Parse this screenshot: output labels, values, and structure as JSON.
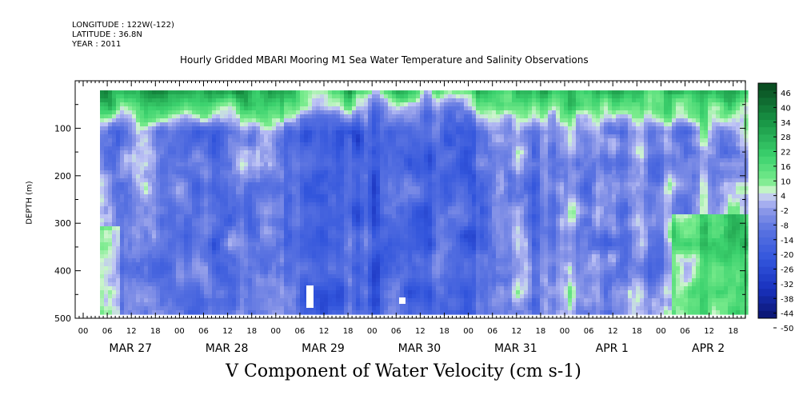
{
  "header": {
    "longitude": "LONGITUDE : 122W(-122)",
    "latitude": "LATITUDE : 36.8N",
    "year": "YEAR : 2011"
  },
  "title": "Hourly Gridded MBARI Mooring M1 Sea Water Temperature and Salinity Observations",
  "chart_data": {
    "type": "heatmap",
    "xlabel": "V Component of Water Velocity (cm s-1)",
    "ylabel": "DEPTH (m)",
    "y_ticks": [
      100,
      200,
      300,
      400,
      500
    ],
    "ylim": [
      500,
      0
    ],
    "x_hour_ticks": [
      "00",
      "06",
      "12",
      "18",
      "00",
      "06",
      "12",
      "18",
      "00",
      "06",
      "12",
      "18",
      "00",
      "06",
      "12",
      "18",
      "00",
      "06",
      "12",
      "18",
      "00",
      "06",
      "12",
      "18",
      "00",
      "06",
      "12",
      "18"
    ],
    "x_day_labels": [
      "MAR 27",
      "MAR 28",
      "MAR 29",
      "MAR 30",
      "MAR 31",
      "APR  1",
      "APR  2"
    ],
    "colorbar_labels": [
      "46",
      "40",
      "34",
      "28",
      "22",
      "16",
      "10",
      "4",
      "-2",
      "-8",
      "-14",
      "-20",
      "-26",
      "-32",
      "-38",
      "-44",
      "-50"
    ],
    "colorbar_range": [
      -50,
      46
    ],
    "colors": {
      "strong_negative": "#0a1a7a",
      "negative": "#4060d8",
      "near_zero": "#b8bff0",
      "positive": "#70e890",
      "strong_positive": "#0b4f22"
    }
  }
}
